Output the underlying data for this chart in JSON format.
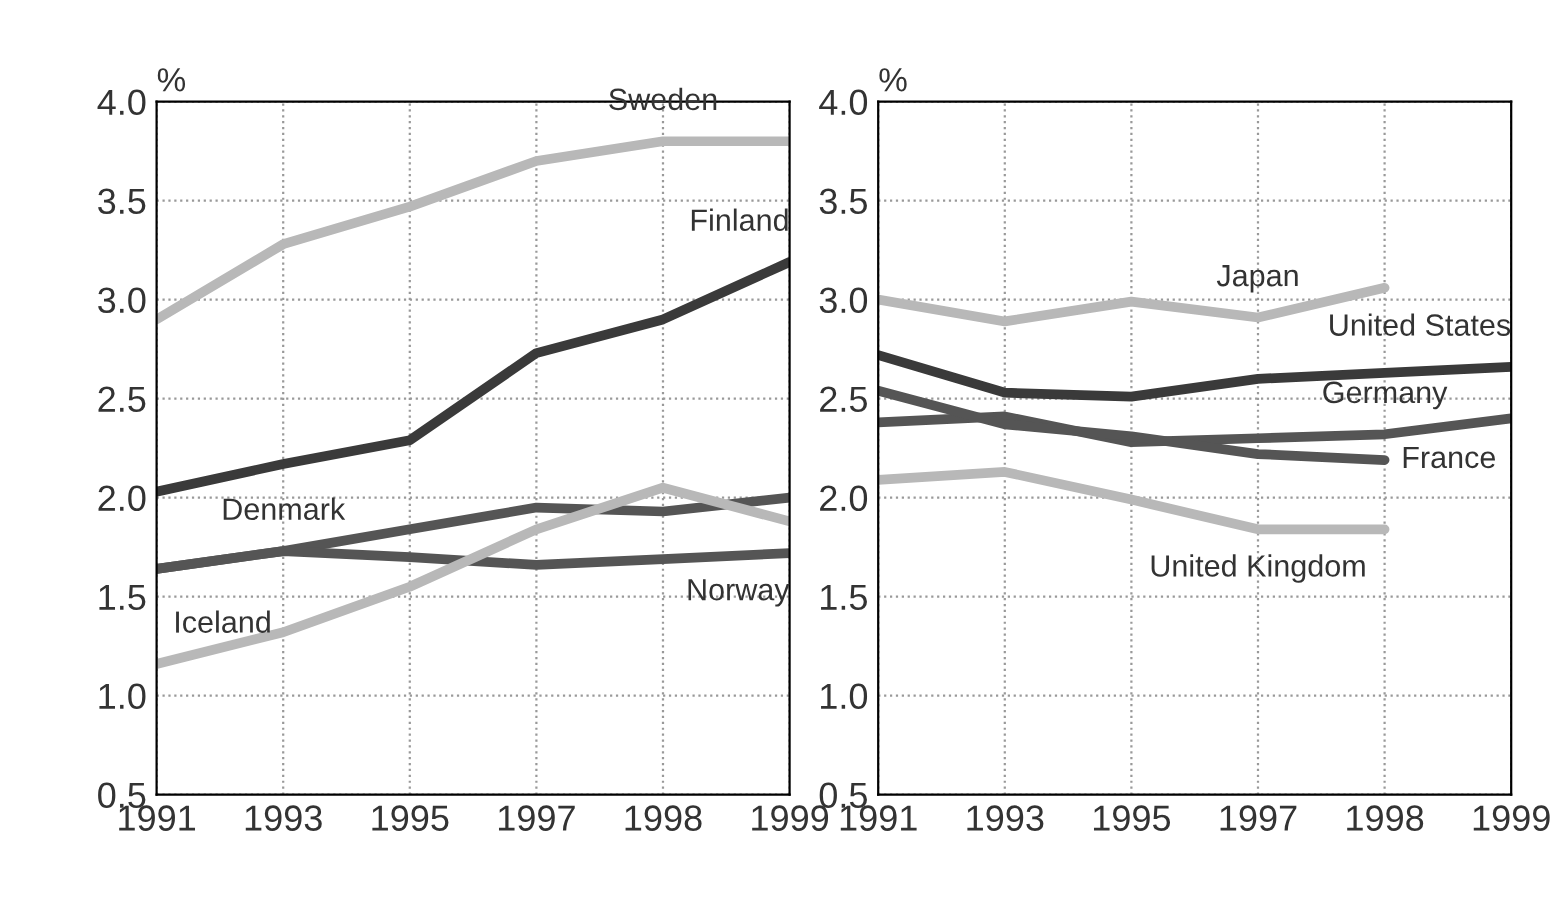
{
  "chart_data": [
    {
      "type": "line",
      "ylabel": "%",
      "categories": [
        "1991",
        "1993",
        "1995",
        "1997",
        "1998",
        "1999"
      ],
      "ylim": [
        0.5,
        4.0
      ],
      "yticks": [
        {
          "value": 0.5,
          "label": "0.5"
        },
        {
          "value": 1.0,
          "label": "1.0"
        },
        {
          "value": 1.5,
          "label": "1.5"
        },
        {
          "value": 2.0,
          "label": "2.0"
        },
        {
          "value": 2.5,
          "label": "2.5"
        },
        {
          "value": 3.0,
          "label": "3.0"
        },
        {
          "value": 3.5,
          "label": "3.5"
        },
        {
          "value": 4.0,
          "label": "4.0"
        }
      ],
      "grid": true,
      "legend": false,
      "series": [
        {
          "color": "#b8b8b8",
          "values": [
            2.9,
            3.28,
            3.47,
            3.7,
            3.8,
            3.8
          ]
        },
        {
          "color": "#3a3a3a",
          "values": [
            2.03,
            2.17,
            2.29,
            2.73,
            2.9,
            3.19
          ]
        },
        {
          "color": "#555555",
          "values": [
            1.64,
            1.73,
            1.84,
            1.95,
            1.93,
            2.0
          ]
        },
        {
          "color": "#555555",
          "values": [
            1.64,
            1.73,
            1.7,
            1.66,
            1.69,
            1.72
          ]
        },
        {
          "color": "#b8b8b8",
          "values": [
            1.16,
            1.32,
            1.55,
            1.84,
            2.05,
            1.88
          ]
        }
      ],
      "annotations": [
        {
          "text": "Sweden",
          "x": "1998",
          "y": 3.8
        },
        {
          "text": "Finland",
          "x": "1999",
          "y": 3.19
        },
        {
          "text": "Denmark",
          "x": "1993",
          "y": 1.73
        },
        {
          "text": "Norway",
          "x": "1999",
          "y": 1.72
        },
        {
          "text": "Iceland",
          "x": "1991",
          "y": 1.16
        }
      ]
    },
    {
      "type": "line",
      "ylabel": "%",
      "categories": [
        "1991",
        "1993",
        "1995",
        "1997",
        "1998",
        "1999"
      ],
      "ylim": [
        0.5,
        4.0
      ],
      "yticks": [
        {
          "value": 0.5,
          "label": "0.5"
        },
        {
          "value": 1.0,
          "label": "1.0"
        },
        {
          "value": 1.5,
          "label": "1.5"
        },
        {
          "value": 2.0,
          "label": "2.0"
        },
        {
          "value": 2.5,
          "label": "2.5"
        },
        {
          "value": 3.0,
          "label": "3.0"
        },
        {
          "value": 3.5,
          "label": "3.5"
        },
        {
          "value": 4.0,
          "label": "4.0"
        }
      ],
      "grid": true,
      "legend": false,
      "series": [
        {
          "color": "#b8b8b8",
          "values": [
            3.0,
            2.89,
            2.99,
            2.91,
            3.06,
            null
          ]
        },
        {
          "color": "#3a3a3a",
          "values": [
            2.72,
            2.53,
            2.51,
            2.6,
            2.63,
            2.66
          ]
        },
        {
          "color": "#555555",
          "values": [
            2.38,
            2.41,
            2.28,
            2.3,
            2.32,
            2.4
          ]
        },
        {
          "color": "#555555",
          "values": [
            2.54,
            2.37,
            2.31,
            2.22,
            2.19,
            null
          ]
        },
        {
          "color": "#b8b8b8",
          "values": [
            2.09,
            2.13,
            1.99,
            1.84,
            1.84,
            null
          ]
        }
      ],
      "annotations": [
        {
          "text": "Japan",
          "x": "1997",
          "y": 2.91
        },
        {
          "text": "United States",
          "x": "1999",
          "y": 2.66
        },
        {
          "text": "Germany",
          "x": "1998",
          "y": 2.32
        },
        {
          "text": "France",
          "x": "1998",
          "y": 2.19
        },
        {
          "text": "United Kingdom",
          "x": "1997",
          "y": 1.84
        }
      ]
    }
  ]
}
